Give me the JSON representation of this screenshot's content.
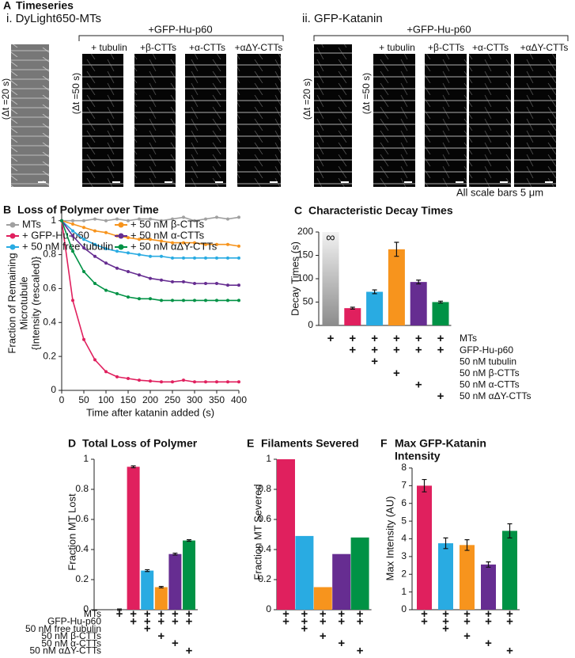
{
  "timeseries": {
    "panel": "A",
    "title": "Timeseries",
    "left": {
      "label": "i. DyLight650-MTs",
      "group": "+GFP-Hu-p60",
      "intervals": [
        "(Δt =20 s)",
        "(Δt =50 s)"
      ],
      "conditions": [
        "+ tubulin",
        "+β-CTTs",
        "+α-CTTs",
        "+αΔY-CTTs"
      ]
    },
    "right": {
      "label": "ii. GFP-Katanin",
      "group": "+GFP-Hu-p60",
      "intervals": [
        "(Δt =20 s)",
        "(Δt =50 s)"
      ],
      "conditions": [
        "+ tubulin",
        "+β-CTTs",
        "+α-CTTs",
        "+αΔY-CTTs"
      ]
    },
    "note": "All scale bars 5 μm"
  },
  "conditions": {
    "marks": [
      [
        "+",
        "+",
        "+",
        "+",
        "+",
        "+"
      ],
      [
        null,
        "+",
        "+",
        "+",
        "+",
        "+"
      ],
      [
        null,
        null,
        "+",
        null,
        null,
        null
      ],
      [
        null,
        null,
        null,
        "+",
        null,
        null
      ],
      [
        null,
        null,
        null,
        null,
        "+",
        null
      ],
      [
        null,
        null,
        null,
        null,
        null,
        "+"
      ]
    ]
  },
  "chart_data": [
    {
      "type": "line",
      "panel": "B",
      "title": "Loss of Polymer over Time",
      "xlabel": "Time after katanin added (s)",
      "ylabel": [
        "Fraction of Remaining",
        "Microtubule",
        "{Intensity (rescaled)}"
      ],
      "x": [
        0,
        25,
        50,
        75,
        100,
        125,
        150,
        175,
        200,
        225,
        250,
        275,
        300,
        325,
        350,
        375,
        400
      ],
      "series": [
        {
          "name": "MTs",
          "color": "#a0a0a0",
          "values": [
            1,
            1,
            1,
            1.01,
            1,
            1.01,
            1,
            1.01,
            1.01,
            1,
            1.01,
            1.02,
            1,
            1.01,
            1.02,
            1.01,
            1.02
          ]
        },
        {
          "name": "+ GFP-Hu-p60",
          "color": "#e0205e",
          "values": [
            1,
            0.53,
            0.3,
            0.18,
            0.11,
            0.08,
            0.07,
            0.06,
            0.055,
            0.05,
            0.05,
            0.06,
            0.05,
            0.05,
            0.05,
            0.05,
            0.05
          ]
        },
        {
          "name": "+ 50 nM free tubulin",
          "color": "#29abe2",
          "values": [
            1,
            0.94,
            0.89,
            0.86,
            0.835,
            0.82,
            0.81,
            0.8,
            0.79,
            0.79,
            0.78,
            0.78,
            0.78,
            0.78,
            0.78,
            0.78,
            0.78
          ]
        },
        {
          "name": "+ 50 nM β-CTTs",
          "color": "#f7941d",
          "values": [
            1,
            0.98,
            0.96,
            0.94,
            0.93,
            0.91,
            0.9,
            0.89,
            0.89,
            0.88,
            0.87,
            0.87,
            0.87,
            0.86,
            0.86,
            0.86,
            0.85
          ]
        },
        {
          "name": "+ 50 nM α-CTTs",
          "color": "#662d91",
          "values": [
            1,
            0.91,
            0.84,
            0.79,
            0.75,
            0.72,
            0.7,
            0.68,
            0.66,
            0.65,
            0.64,
            0.64,
            0.63,
            0.63,
            0.63,
            0.62,
            0.62
          ]
        },
        {
          "name": "+ 50 nM αΔY-CTTs",
          "color": "#009245",
          "values": [
            1,
            0.82,
            0.7,
            0.63,
            0.59,
            0.57,
            0.55,
            0.54,
            0.54,
            0.53,
            0.53,
            0.53,
            0.53,
            0.53,
            0.53,
            0.53,
            0.53
          ]
        }
      ],
      "xlim": [
        0,
        400
      ],
      "ylim": [
        0,
        1.05
      ],
      "xticks": [
        0,
        50,
        100,
        150,
        200,
        250,
        300,
        350,
        400
      ],
      "yticks": [
        0,
        0.2,
        0.4,
        0.6,
        0.8,
        1
      ]
    },
    {
      "type": "bar",
      "panel": "C",
      "title": "Characteristic Decay Times",
      "ylabel": "Decay Times (s)",
      "values": [
        null,
        37,
        72,
        163,
        93,
        50
      ],
      "errors": [
        null,
        2,
        4,
        15,
        4,
        2
      ],
      "colors": [
        "#a0a0a0",
        "#e0205e",
        "#29abe2",
        "#f7941d",
        "#662d91",
        "#009245"
      ],
      "infinite_label": "∞",
      "ylim": [
        0,
        200
      ],
      "yticks": [
        0,
        50,
        100,
        150,
        200
      ],
      "condition_labels": [
        "MTs",
        "GFP-Hu-p60",
        "50 nM tubulin",
        "50 nM β-CTTs",
        "50 nM α-CTTs",
        "50 nM αΔY-CTTs"
      ]
    },
    {
      "type": "bar",
      "panel": "D",
      "title": "Total Loss of Polymer",
      "ylabel": "Fraction MT Lost",
      "values": [
        0,
        0.95,
        0.26,
        0.15,
        0.37,
        0.46
      ],
      "errors": [
        0.005,
        0.006,
        0.006,
        0.005,
        0.006,
        0.005
      ],
      "colors": [
        "#a0a0a0",
        "#e0205e",
        "#29abe2",
        "#f7941d",
        "#662d91",
        "#009245"
      ],
      "ylim": [
        0,
        1
      ],
      "yticks": [
        0,
        0.2,
        0.4,
        0.6,
        0.8,
        1
      ],
      "condition_labels": [
        "MTs",
        "GFP-Hu-p60",
        "50 nM free tubulin",
        "50 nM β-CTTs",
        "50 nM α-CTTs",
        "50 nM αΔY-CTTs"
      ]
    },
    {
      "type": "bar",
      "panel": "E",
      "title": "Filaments Severed",
      "ylabel": "Fraction MT Severed",
      "values": [
        1,
        0.49,
        0.15,
        0.37,
        0.48
      ],
      "colors": [
        "#e0205e",
        "#29abe2",
        "#f7941d",
        "#662d91",
        "#009245"
      ],
      "ylim": [
        0,
        1
      ],
      "yticks": [
        0,
        0.2,
        0.4,
        0.6,
        0.8,
        1
      ]
    },
    {
      "type": "bar",
      "panel": "F",
      "title": [
        "Max GFP-Katanin",
        "Intensity"
      ],
      "ylabel": "Max Intensity (AU)",
      "values": [
        7.0,
        3.75,
        3.65,
        2.55,
        4.45
      ],
      "errors": [
        0.35,
        0.3,
        0.3,
        0.15,
        0.4
      ],
      "colors": [
        "#e0205e",
        "#29abe2",
        "#f7941d",
        "#662d91",
        "#009245"
      ],
      "ylim": [
        0,
        8
      ],
      "yticks": [
        0,
        1,
        2,
        3,
        4,
        5,
        6,
        7,
        8
      ]
    }
  ]
}
